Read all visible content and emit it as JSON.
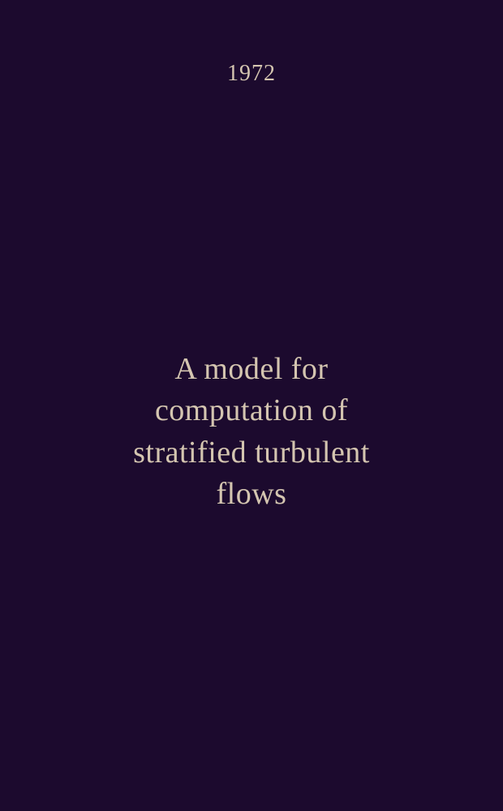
{
  "year": "1972",
  "title_lines": {
    "line1": "A model for",
    "line2": "computation of",
    "line3": "stratified turbulent",
    "line4": "flows"
  },
  "colors": {
    "background": "#1c0a2e",
    "text": "#d4c5b0"
  },
  "typography": {
    "year_fontsize": 28,
    "title_fontsize": 38,
    "title_lineheight": 1.35,
    "font_family": "Georgia, Times New Roman, serif"
  }
}
